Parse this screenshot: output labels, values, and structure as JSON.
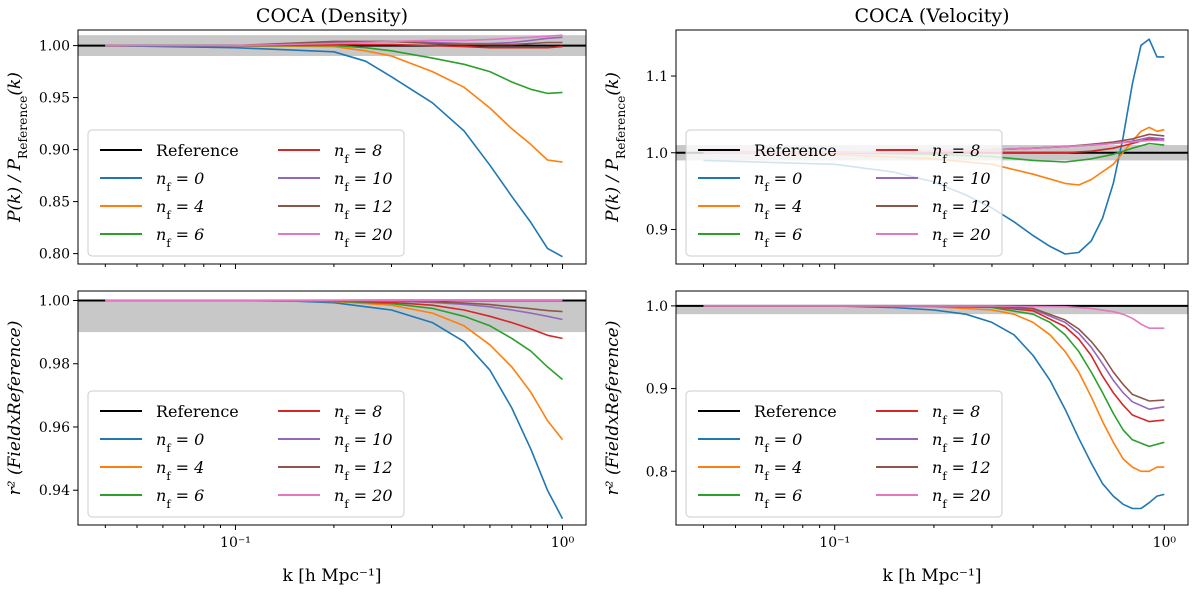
{
  "figure": {
    "xlabel": "k [h Mpc⁻¹]",
    "x_ticks": [
      {
        "value": 0.1,
        "label": "10⁻¹"
      },
      {
        "value": 1.0,
        "label": "10⁰"
      }
    ],
    "colors": {
      "Reference": "#000000",
      "nf0": "#1f77b4",
      "nf4": "#ff7f0e",
      "nf6": "#2ca02c",
      "nf8": "#d62728",
      "nf10": "#9467bd",
      "nf12": "#8c564b",
      "nf20": "#e377c2"
    }
  },
  "chart_data": [
    {
      "id": "density-power",
      "type": "line",
      "title": "COCA (Density)",
      "ylabel": "P(k) / P_Reference(k)",
      "xscale": "log",
      "xlim": [
        0.033,
        1.18
      ],
      "ylim": [
        0.79,
        1.015
      ],
      "yticks": [
        0.8,
        0.85,
        0.9,
        0.95,
        1.0
      ],
      "ytick_labels": [
        "0.80",
        "0.85",
        "0.90",
        "0.95",
        "1.00"
      ],
      "band": [
        0.99,
        1.01
      ],
      "reference": 1.0,
      "legend": "lower-left",
      "series": [
        {
          "name": "n_f = 0",
          "key": "nf0",
          "x": [
            0.04,
            0.1,
            0.2,
            0.25,
            0.3,
            0.4,
            0.5,
            0.6,
            0.7,
            0.8,
            0.9,
            1.0
          ],
          "y": [
            1.0,
            0.998,
            0.994,
            0.985,
            0.97,
            0.945,
            0.918,
            0.885,
            0.855,
            0.83,
            0.805,
            0.797
          ]
        },
        {
          "name": "n_f = 4",
          "key": "nf4",
          "x": [
            0.04,
            0.1,
            0.2,
            0.25,
            0.3,
            0.4,
            0.5,
            0.6,
            0.7,
            0.8,
            0.9,
            1.0
          ],
          "y": [
            1.0,
            1.0,
            0.999,
            0.995,
            0.99,
            0.975,
            0.96,
            0.94,
            0.92,
            0.905,
            0.89,
            0.888
          ]
        },
        {
          "name": "n_f = 6",
          "key": "nf6",
          "x": [
            0.04,
            0.1,
            0.2,
            0.25,
            0.3,
            0.4,
            0.5,
            0.6,
            0.7,
            0.8,
            0.9,
            1.0
          ],
          "y": [
            1.0,
            1.0,
            1.0,
            0.998,
            0.995,
            0.988,
            0.982,
            0.975,
            0.965,
            0.958,
            0.954,
            0.955
          ]
        },
        {
          "name": "n_f = 8",
          "key": "nf8",
          "x": [
            0.04,
            0.1,
            0.2,
            0.3,
            0.4,
            0.5,
            0.6,
            0.7,
            0.8,
            0.9,
            1.0
          ],
          "y": [
            1.0,
            1.0,
            1.001,
            1.001,
            1.0,
            0.999,
            0.998,
            0.998,
            0.998,
            0.998,
            0.999
          ]
        },
        {
          "name": "n_f = 10",
          "key": "nf10",
          "x": [
            0.04,
            0.1,
            0.2,
            0.3,
            0.4,
            0.5,
            0.6,
            0.7,
            0.8,
            0.9,
            1.0
          ],
          "y": [
            1.0,
            1.0,
            1.003,
            1.004,
            1.003,
            1.002,
            1.002,
            1.003,
            1.005,
            1.007,
            1.008
          ]
        },
        {
          "name": "n_f = 12",
          "key": "nf12",
          "x": [
            0.04,
            0.1,
            0.2,
            0.3,
            0.4,
            0.5,
            0.6,
            0.7,
            0.8,
            0.9,
            1.0
          ],
          "y": [
            1.0,
            1.0,
            1.004,
            1.004,
            1.002,
            1.001,
            1.001,
            1.001,
            1.002,
            1.003,
            1.003
          ]
        },
        {
          "name": "n_f = 20",
          "key": "nf20",
          "x": [
            0.04,
            0.1,
            0.2,
            0.3,
            0.4,
            0.5,
            0.6,
            0.7,
            0.8,
            0.9,
            1.0
          ],
          "y": [
            1.0,
            1.0,
            1.002,
            1.004,
            1.005,
            1.005,
            1.006,
            1.007,
            1.008,
            1.009,
            1.01
          ]
        }
      ]
    },
    {
      "id": "velocity-power",
      "type": "line",
      "title": "COCA (Velocity)",
      "ylabel": "P(k) / P_Reference(k)",
      "xscale": "log",
      "xlim": [
        0.033,
        1.18
      ],
      "ylim": [
        0.855,
        1.16
      ],
      "yticks": [
        0.9,
        1.0,
        1.1
      ],
      "ytick_labels": [
        "0.9",
        "1.0",
        "1.1"
      ],
      "band": [
        0.99,
        1.01
      ],
      "reference": 1.0,
      "legend": "lower-left",
      "series": [
        {
          "name": "n_f = 0",
          "key": "nf0",
          "x": [
            0.04,
            0.1,
            0.15,
            0.2,
            0.25,
            0.3,
            0.35,
            0.4,
            0.45,
            0.5,
            0.55,
            0.6,
            0.65,
            0.7,
            0.75,
            0.8,
            0.85,
            0.9,
            0.95,
            1.0
          ],
          "y": [
            0.99,
            0.985,
            0.975,
            0.962,
            0.945,
            0.928,
            0.91,
            0.892,
            0.878,
            0.868,
            0.87,
            0.885,
            0.915,
            0.96,
            1.02,
            1.09,
            1.14,
            1.148,
            1.125,
            1.125
          ]
        },
        {
          "name": "n_f = 4",
          "key": "nf4",
          "x": [
            0.04,
            0.1,
            0.2,
            0.3,
            0.4,
            0.5,
            0.55,
            0.6,
            0.7,
            0.8,
            0.85,
            0.9,
            0.95,
            1.0
          ],
          "y": [
            1.0,
            0.998,
            0.992,
            0.985,
            0.972,
            0.96,
            0.958,
            0.965,
            0.985,
            1.015,
            1.028,
            1.033,
            1.028,
            1.03
          ]
        },
        {
          "name": "n_f = 6",
          "key": "nf6",
          "x": [
            0.04,
            0.1,
            0.2,
            0.3,
            0.4,
            0.5,
            0.6,
            0.7,
            0.8,
            0.9,
            1.0
          ],
          "y": [
            1.0,
            1.0,
            0.998,
            0.995,
            0.99,
            0.988,
            0.992,
            0.998,
            1.006,
            1.012,
            1.01
          ]
        },
        {
          "name": "n_f = 8",
          "key": "nf8",
          "x": [
            0.04,
            0.1,
            0.2,
            0.3,
            0.4,
            0.5,
            0.6,
            0.7,
            0.8,
            0.9,
            1.0
          ],
          "y": [
            1.0,
            1.0,
            1.0,
            1.0,
            1.0,
            1.0,
            1.002,
            1.006,
            1.012,
            1.018,
            1.016
          ]
        },
        {
          "name": "n_f = 10",
          "key": "nf10",
          "x": [
            0.04,
            0.1,
            0.2,
            0.3,
            0.4,
            0.5,
            0.6,
            0.7,
            0.8,
            0.9,
            1.0
          ],
          "y": [
            1.0,
            1.0,
            1.002,
            1.004,
            1.006,
            1.008,
            1.01,
            1.012,
            1.015,
            1.02,
            1.018
          ]
        },
        {
          "name": "n_f = 12",
          "key": "nf12",
          "x": [
            0.04,
            0.1,
            0.2,
            0.3,
            0.4,
            0.5,
            0.6,
            0.7,
            0.8,
            0.9,
            1.0
          ],
          "y": [
            1.0,
            1.0,
            1.002,
            1.004,
            1.006,
            1.008,
            1.011,
            1.014,
            1.018,
            1.024,
            1.022
          ]
        },
        {
          "name": "n_f = 20",
          "key": "nf20",
          "x": [
            0.04,
            0.1,
            0.2,
            0.3,
            0.4,
            0.5,
            0.6,
            0.7,
            0.8,
            0.9,
            1.0
          ],
          "y": [
            1.0,
            1.0,
            1.002,
            1.004,
            1.006,
            1.008,
            1.01,
            1.012,
            1.014,
            1.016,
            1.016
          ]
        }
      ]
    },
    {
      "id": "density-correlation",
      "type": "line",
      "title": "",
      "ylabel": "r² (FieldxReference)",
      "xscale": "log",
      "xlim": [
        0.033,
        1.18
      ],
      "ylim": [
        0.929,
        1.003
      ],
      "yticks": [
        0.94,
        0.96,
        0.98,
        1.0
      ],
      "ytick_labels": [
        "0.94",
        "0.96",
        "0.98",
        "1.00"
      ],
      "band": [
        0.99,
        1.0
      ],
      "reference": 1.0,
      "legend": "lower-left",
      "series": [
        {
          "name": "n_f = 0",
          "key": "nf0",
          "x": [
            0.04,
            0.1,
            0.15,
            0.2,
            0.3,
            0.4,
            0.5,
            0.6,
            0.7,
            0.8,
            0.9,
            1.0
          ],
          "y": [
            1.0,
            1.0,
            0.9998,
            0.9993,
            0.997,
            0.993,
            0.987,
            0.978,
            0.966,
            0.953,
            0.94,
            0.931
          ]
        },
        {
          "name": "n_f = 4",
          "key": "nf4",
          "x": [
            0.04,
            0.1,
            0.2,
            0.3,
            0.4,
            0.5,
            0.6,
            0.7,
            0.8,
            0.9,
            1.0
          ],
          "y": [
            1.0,
            1.0,
            0.9997,
            0.9985,
            0.996,
            0.992,
            0.986,
            0.979,
            0.971,
            0.962,
            0.956
          ]
        },
        {
          "name": "n_f = 6",
          "key": "nf6",
          "x": [
            0.04,
            0.1,
            0.2,
            0.3,
            0.4,
            0.5,
            0.6,
            0.7,
            0.8,
            0.9,
            1.0
          ],
          "y": [
            1.0,
            1.0,
            0.9998,
            0.999,
            0.9975,
            0.995,
            0.992,
            0.988,
            0.984,
            0.979,
            0.975
          ]
        },
        {
          "name": "n_f = 8",
          "key": "nf8",
          "x": [
            0.04,
            0.1,
            0.2,
            0.3,
            0.4,
            0.5,
            0.6,
            0.7,
            0.8,
            0.9,
            1.0
          ],
          "y": [
            1.0,
            1.0,
            0.9999,
            0.9994,
            0.9985,
            0.997,
            0.995,
            0.993,
            0.991,
            0.989,
            0.988
          ]
        },
        {
          "name": "n_f = 10",
          "key": "nf10",
          "x": [
            0.04,
            0.1,
            0.2,
            0.3,
            0.4,
            0.5,
            0.6,
            0.7,
            0.8,
            0.9,
            1.0
          ],
          "y": [
            1.0,
            1.0,
            1.0,
            0.9998,
            0.9994,
            0.9988,
            0.998,
            0.997,
            0.996,
            0.995,
            0.994
          ]
        },
        {
          "name": "n_f = 12",
          "key": "nf12",
          "x": [
            0.04,
            0.1,
            0.2,
            0.3,
            0.4,
            0.5,
            0.6,
            0.7,
            0.8,
            0.9,
            1.0
          ],
          "y": [
            1.0,
            1.0,
            1.0,
            0.9999,
            0.9996,
            0.9992,
            0.9987,
            0.998,
            0.9974,
            0.9968,
            0.9965
          ]
        },
        {
          "name": "n_f = 20",
          "key": "nf20",
          "x": [
            0.04,
            0.1,
            0.2,
            0.3,
            0.4,
            0.5,
            0.6,
            0.7,
            0.8,
            0.9,
            1.0
          ],
          "y": [
            1.0,
            1.0,
            1.0,
            1.0,
            1.0,
            1.0,
            1.0,
            1.0,
            1.0,
            1.0,
            1.0
          ]
        }
      ]
    },
    {
      "id": "velocity-correlation",
      "type": "line",
      "title": "",
      "ylabel": "r² (FieldxReference)",
      "xscale": "log",
      "xlim": [
        0.033,
        1.18
      ],
      "ylim": [
        0.735,
        1.018
      ],
      "yticks": [
        0.8,
        0.9,
        1.0
      ],
      "ytick_labels": [
        "0.8",
        "0.9",
        "1.0"
      ],
      "band": [
        0.99,
        1.0
      ],
      "reference": 1.0,
      "legend": "lower-left",
      "series": [
        {
          "name": "n_f = 0",
          "key": "nf0",
          "x": [
            0.04,
            0.1,
            0.15,
            0.2,
            0.25,
            0.3,
            0.35,
            0.4,
            0.45,
            0.5,
            0.55,
            0.6,
            0.65,
            0.7,
            0.75,
            0.8,
            0.85,
            0.9,
            0.95,
            1.0
          ],
          "y": [
            1.0,
            1.0,
            0.998,
            0.995,
            0.99,
            0.98,
            0.965,
            0.94,
            0.91,
            0.875,
            0.84,
            0.81,
            0.785,
            0.77,
            0.76,
            0.755,
            0.755,
            0.762,
            0.77,
            0.772
          ]
        },
        {
          "name": "n_f = 4",
          "key": "nf4",
          "x": [
            0.04,
            0.1,
            0.2,
            0.3,
            0.35,
            0.4,
            0.45,
            0.5,
            0.55,
            0.6,
            0.65,
            0.7,
            0.75,
            0.8,
            0.85,
            0.9,
            0.95,
            1.0
          ],
          "y": [
            1.0,
            1.0,
            0.999,
            0.995,
            0.99,
            0.98,
            0.965,
            0.945,
            0.92,
            0.89,
            0.86,
            0.835,
            0.815,
            0.805,
            0.8,
            0.8,
            0.805,
            0.805
          ]
        },
        {
          "name": "n_f = 6",
          "key": "nf6",
          "x": [
            0.04,
            0.1,
            0.2,
            0.3,
            0.4,
            0.45,
            0.5,
            0.55,
            0.6,
            0.65,
            0.7,
            0.75,
            0.8,
            0.9,
            1.0
          ],
          "y": [
            1.0,
            1.0,
            0.9995,
            0.998,
            0.99,
            0.98,
            0.965,
            0.945,
            0.92,
            0.895,
            0.87,
            0.85,
            0.838,
            0.83,
            0.835
          ]
        },
        {
          "name": "n_f = 8",
          "key": "nf8",
          "x": [
            0.04,
            0.1,
            0.2,
            0.3,
            0.4,
            0.5,
            0.55,
            0.6,
            0.65,
            0.7,
            0.75,
            0.8,
            0.9,
            1.0
          ],
          "y": [
            1.0,
            1.0,
            1.0,
            0.999,
            0.994,
            0.975,
            0.96,
            0.94,
            0.915,
            0.895,
            0.88,
            0.868,
            0.86,
            0.862
          ]
        },
        {
          "name": "n_f = 10",
          "key": "nf10",
          "x": [
            0.04,
            0.1,
            0.2,
            0.3,
            0.4,
            0.5,
            0.55,
            0.6,
            0.65,
            0.7,
            0.75,
            0.8,
            0.9,
            1.0
          ],
          "y": [
            1.0,
            1.0,
            1.0,
            0.9995,
            0.996,
            0.98,
            0.967,
            0.95,
            0.93,
            0.91,
            0.895,
            0.884,
            0.875,
            0.878
          ]
        },
        {
          "name": "n_f = 12",
          "key": "nf12",
          "x": [
            0.04,
            0.1,
            0.2,
            0.3,
            0.4,
            0.5,
            0.55,
            0.6,
            0.65,
            0.7,
            0.75,
            0.8,
            0.9,
            1.0
          ],
          "y": [
            1.0,
            1.0,
            1.0,
            0.9997,
            0.997,
            0.983,
            0.972,
            0.957,
            0.94,
            0.92,
            0.905,
            0.893,
            0.885,
            0.886
          ]
        },
        {
          "name": "n_f = 20",
          "key": "nf20",
          "x": [
            0.04,
            0.1,
            0.2,
            0.3,
            0.4,
            0.5,
            0.6,
            0.7,
            0.75,
            0.8,
            0.85,
            0.9,
            1.0
          ],
          "y": [
            1.0,
            1.0,
            1.0,
            1.0,
            0.9995,
            0.999,
            0.997,
            0.993,
            0.99,
            0.985,
            0.978,
            0.973,
            0.973
          ]
        }
      ]
    }
  ],
  "legend": {
    "entries": [
      {
        "key": "Reference",
        "label": "Reference"
      },
      {
        "key": "nf0",
        "label": "n_f = 0"
      },
      {
        "key": "nf4",
        "label": "n_f = 4"
      },
      {
        "key": "nf6",
        "label": "n_f = 6"
      },
      {
        "key": "nf8",
        "label": "n_f = 8"
      },
      {
        "key": "nf10",
        "label": "n_f = 10"
      },
      {
        "key": "nf12",
        "label": "n_f = 12"
      },
      {
        "key": "nf20",
        "label": "n_f = 20"
      }
    ]
  }
}
